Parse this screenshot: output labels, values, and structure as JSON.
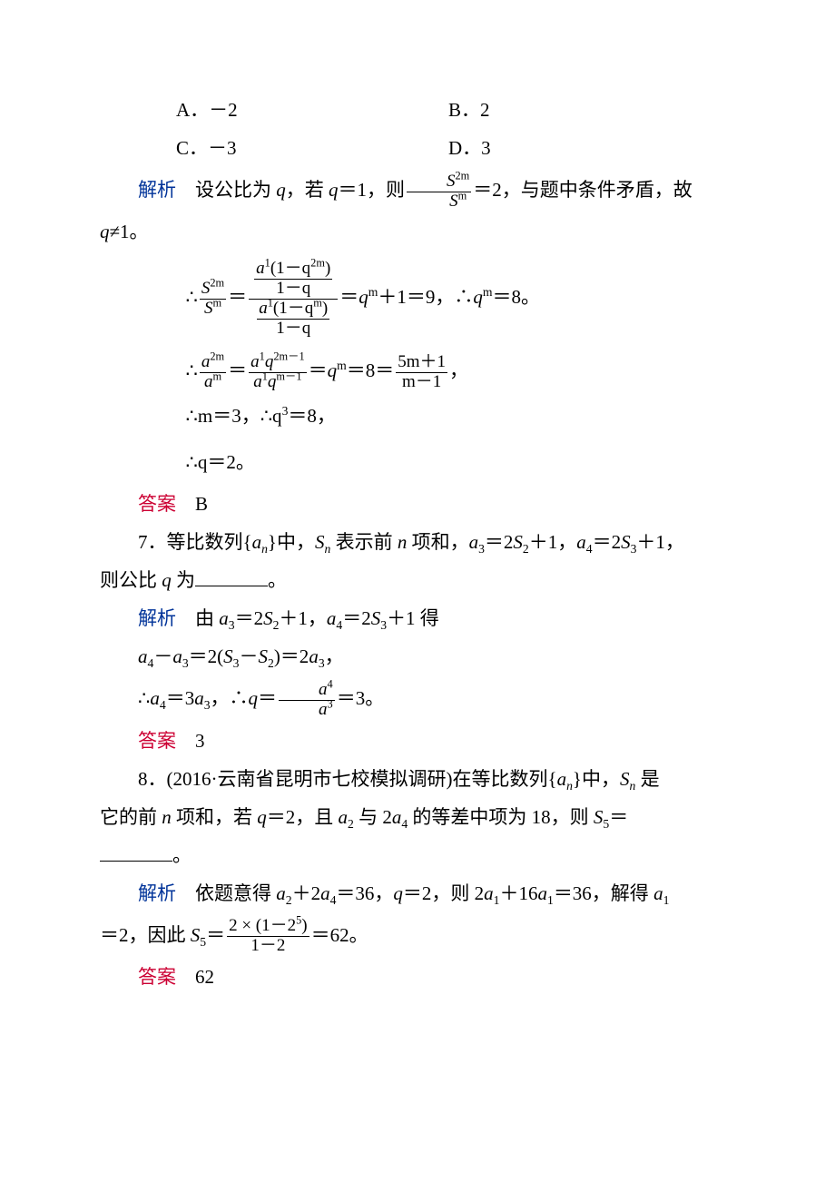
{
  "colors": {
    "text": "#000000",
    "blue": "#003399",
    "red": "#cc0033",
    "background": "#ffffff"
  },
  "typography": {
    "body_font": "SimSun / Songti",
    "math_font": "Times New Roman",
    "font_size_pt": 16,
    "line_height": 2.0
  },
  "options": {
    "A": {
      "prefix": "A．",
      "value": "－2"
    },
    "B": {
      "prefix": "B．",
      "value": "2"
    },
    "C": {
      "prefix": "C．",
      "value": "－3"
    },
    "D": {
      "prefix": "D．",
      "value": "3"
    }
  },
  "labels": {
    "analysis": "解析",
    "answer": "答案"
  },
  "q6": {
    "analysis_line1_a": "设公比为 ",
    "analysis_line1_b": "q",
    "analysis_line1_c": "，若 ",
    "analysis_line1_d": "q",
    "analysis_line1_e": "＝1，则",
    "frac_num": "S",
    "frac_den": "S",
    "sup_num": "2m",
    "sup_den": "m",
    "analysis_line1_f": "＝2，与题中条件矛盾，故",
    "analysis_line2_a": "q",
    "analysis_line2_b": "≠1。",
    "eq1_lead": "∴",
    "eq1_left_num": "S",
    "eq1_left_num_sup": "2m",
    "eq1_left_den": "S",
    "eq1_left_den_sup": "m",
    "eq1_note": "＝",
    "eq1_inner_top_num": "a",
    "eq1_inner_top_text": "(1－q",
    "eq1_inner_top_sup": "2m",
    "eq1_inner_top_close": ")",
    "eq1_inner_top_den": "1－q",
    "eq1_inner_bot_num": "a",
    "eq1_inner_bot_text": "(1－q",
    "eq1_inner_bot_sup": "m",
    "eq1_inner_bot_close": ")",
    "eq1_inner_bot_den": "1－q",
    "eq1_rhs_a": "＝",
    "eq1_rhs_qm": "q",
    "eq1_rhs_m": "m",
    "eq1_rhs_b": "＋1＝9，∴",
    "eq1_rhs_q2": "q",
    "eq1_rhs_m2": "m",
    "eq1_rhs_c": "＝8。",
    "eq2_lead": "∴",
    "eq2_l_num": "a",
    "eq2_l_num_sup": "2m",
    "eq2_l_den": "a",
    "eq2_l_den_sup": "m",
    "eq2_mid_num_a": "a",
    "eq2_mid_num_q": "q",
    "eq2_mid_num_sup": "2m－1",
    "eq2_mid_den_a": "a",
    "eq2_mid_den_q": "q",
    "eq2_mid_den_sup": "m－1",
    "eq2_r1": "＝",
    "eq2_q": "q",
    "eq2_m": "m",
    "eq2_r2": "＝8＝",
    "eq2_last_num": "5m＋1",
    "eq2_last_den": "m－1",
    "eq2_tail": "，",
    "eq3": "∴m＝3，∴q",
    "eq3_sup": "3",
    "eq3_b": "＝8，",
    "eq4": "∴q＝2。",
    "answer": "B"
  },
  "q7": {
    "stem_a": "7．等比数列{",
    "stem_an": "a",
    "stem_n": "n",
    "stem_b": "}中，",
    "stem_sn": "S",
    "stem_c": " 表示前 ",
    "stem_nn": "n",
    "stem_d": " 项和，",
    "stem_e": "a",
    "stem_e3": "3",
    "stem_f": "＝2",
    "stem_s2": "S",
    "stem_s2n": "2",
    "stem_g": "＋1，",
    "stem_h": "a",
    "stem_h4": "4",
    "stem_i": "＝2",
    "stem_s3": "S",
    "stem_s3n": "3",
    "stem_j": "＋1，",
    "stem_line2": "则公比 ",
    "stem_q": "q",
    "stem_k": " 为",
    "stem_period": "。",
    "ana_a": "由 ",
    "ana_eq": "a",
    "ana_3": "3",
    "ana_b": "＝2",
    "ana_s": "S",
    "ana_2": "2",
    "ana_c": "＋1，",
    "ana_a4": "a",
    "ana_4": "4",
    "ana_d": "＝2",
    "ana_s3": "S",
    "ana_3b": "3",
    "ana_e": "＋1 得",
    "line2": "a",
    "line2_4": "4",
    "line2_b": "－",
    "line2_a3": "a",
    "line2_3": "3",
    "line2_c": "＝2(",
    "line2_s3": "S",
    "line2_s3n": "3",
    "line2_d": "－",
    "line2_s2": "S",
    "line2_s2n": "2",
    "line2_e": ")＝2",
    "line2_a3b": "a",
    "line2_3b": "3",
    "line2_f": "，",
    "line3_a": "∴",
    "line3_a4": "a",
    "line3_4": "4",
    "line3_b": "＝3",
    "line3_a3": "a",
    "line3_3": "3",
    "line3_c": "，∴",
    "line3_q": "q",
    "line3_d": "＝",
    "line3_num": "a",
    "line3_num_sup": "4",
    "line3_den": "a",
    "line3_den_sup": "3",
    "line3_e": "＝3。",
    "answer": "3"
  },
  "q8": {
    "stem_a": "8．(2016·云南省昆明市七校模拟调研)在等比数列{",
    "stem_an": "a",
    "stem_n": "n",
    "stem_b": "}中，",
    "stem_sn": "S",
    "stem_sn_n": "n",
    "stem_c": " 是",
    "line2_a": "它的前 ",
    "line2_n": "n",
    "line2_b": " 项和，若 ",
    "line2_q": "q",
    "line2_c": "＝2，且 ",
    "line2_a2": "a",
    "line2_2": "2",
    "line2_d": " 与 2",
    "line2_a4": "a",
    "line2_4": "4",
    "line2_e": " 的等差中项为 18，则 ",
    "line2_s5": "S",
    "line2_5": "5",
    "line2_f": "＝",
    "line3_period": "。",
    "ana_a": "依题意得 ",
    "ana_a2": "a",
    "ana_2": "2",
    "ana_b": "＋2",
    "ana_a4": "a",
    "ana_4": "4",
    "ana_c": "＝36，",
    "ana_q": "q",
    "ana_d": "＝2，则 2",
    "ana_a1": "a",
    "ana_1": "1",
    "ana_e": "＋16",
    "ana_a1b": "a",
    "ana_1b": "1",
    "ana_f": "＝36，解得 ",
    "ana_a1c": "a",
    "ana_1c": "1",
    "line2b_a": "＝2，因此 ",
    "line2b_s5": "S",
    "line2b_5": "5",
    "line2b_b": "＝",
    "frac_num_a": "2 × (1－2",
    "frac_num_sup": "5",
    "frac_num_b": ")",
    "frac_den": "1－2",
    "line2b_c": "＝62。",
    "answer": "62"
  }
}
